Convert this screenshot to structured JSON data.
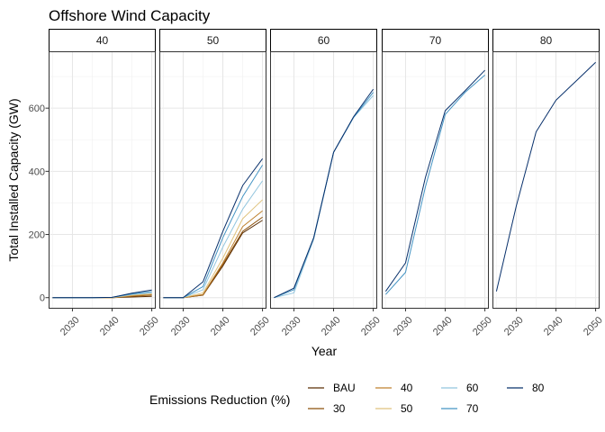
{
  "chart_data": {
    "type": "line",
    "title": "Offshore Wind Capacity",
    "xlabel": "Year",
    "ylabel": "Total Installed Capacity (GW)",
    "x_ticks": [
      2030,
      2040,
      2050
    ],
    "y_ticks": [
      0,
      200,
      400,
      600
    ],
    "xlim": [
      2024,
      2051
    ],
    "ylim": [
      -35,
      780
    ],
    "grid": true,
    "legend": {
      "title": "Emissions Reduction (%)",
      "placement": "bottom",
      "entries": [
        {
          "name": "BAU",
          "color": "#5a2d05"
        },
        {
          "name": "30",
          "color": "#8c510a"
        },
        {
          "name": "40",
          "color": "#bf812d"
        },
        {
          "name": "50",
          "color": "#dfc27d"
        },
        {
          "name": "60",
          "color": "#92c5de"
        },
        {
          "name": "70",
          "color": "#4393c3"
        },
        {
          "name": "80",
          "color": "#08306b"
        }
      ]
    },
    "panels": [
      {
        "label": "40",
        "x": [
          2025,
          2030,
          2035,
          2040,
          2045,
          2050
        ],
        "series": [
          {
            "name": "BAU",
            "values": [
              0,
              0,
              0,
              0,
              2,
              4
            ]
          },
          {
            "name": "30",
            "values": [
              0,
              0,
              0,
              0,
              4,
              8
            ]
          },
          {
            "name": "40",
            "values": [
              0,
              0,
              0,
              0,
              6,
              10
            ]
          },
          {
            "name": "50",
            "values": [
              0,
              0,
              0,
              0,
              8,
              12
            ]
          },
          {
            "name": "60",
            "values": [
              0,
              0,
              0,
              1,
              10,
              15
            ]
          },
          {
            "name": "70",
            "values": [
              0,
              0,
              0,
              1,
              12,
              19
            ]
          },
          {
            "name": "80",
            "values": [
              0,
              0,
              0,
              1,
              14,
              24
            ]
          }
        ]
      },
      {
        "label": "50",
        "x": [
          2025,
          2030,
          2035,
          2040,
          2045,
          2050
        ],
        "series": [
          {
            "name": "BAU",
            "values": [
              0,
              0,
              8,
              100,
              205,
              245
            ]
          },
          {
            "name": "30",
            "values": [
              0,
              0,
              8,
              105,
              210,
              255
            ]
          },
          {
            "name": "40",
            "values": [
              0,
              0,
              10,
              110,
              225,
              275
            ]
          },
          {
            "name": "50",
            "values": [
              0,
              0,
              15,
              125,
              250,
              310
            ]
          },
          {
            "name": "60",
            "values": [
              0,
              0,
              25,
              160,
              280,
              370
            ]
          },
          {
            "name": "70",
            "values": [
              0,
              0,
              35,
              190,
              320,
              420
            ]
          },
          {
            "name": "80",
            "values": [
              0,
              0,
              50,
              210,
              355,
              440
            ]
          }
        ]
      },
      {
        "label": "60",
        "x": [
          2025,
          2030,
          2035,
          2040,
          2045,
          2050
        ],
        "series": [
          {
            "name": "60",
            "values": [
              0,
              15,
              185,
              460,
              570,
              640
            ]
          },
          {
            "name": "70",
            "values": [
              0,
              25,
              190,
              460,
              570,
              650
            ]
          },
          {
            "name": "80",
            "values": [
              0,
              30,
              190,
              460,
              572,
              660
            ]
          }
        ]
      },
      {
        "label": "70",
        "x": [
          2025,
          2030,
          2035,
          2040,
          2045,
          2050
        ],
        "series": [
          {
            "name": "70",
            "values": [
              10,
              80,
              350,
              580,
              650,
              705
            ]
          },
          {
            "name": "80",
            "values": [
              20,
              110,
              380,
              592,
              655,
              720
            ]
          }
        ]
      },
      {
        "label": "80",
        "x": [
          2025,
          2030,
          2035,
          2040,
          2045,
          2050
        ],
        "series": [
          {
            "name": "80",
            "values": [
              20,
              290,
              525,
              625,
              685,
              745
            ]
          }
        ]
      }
    ]
  }
}
